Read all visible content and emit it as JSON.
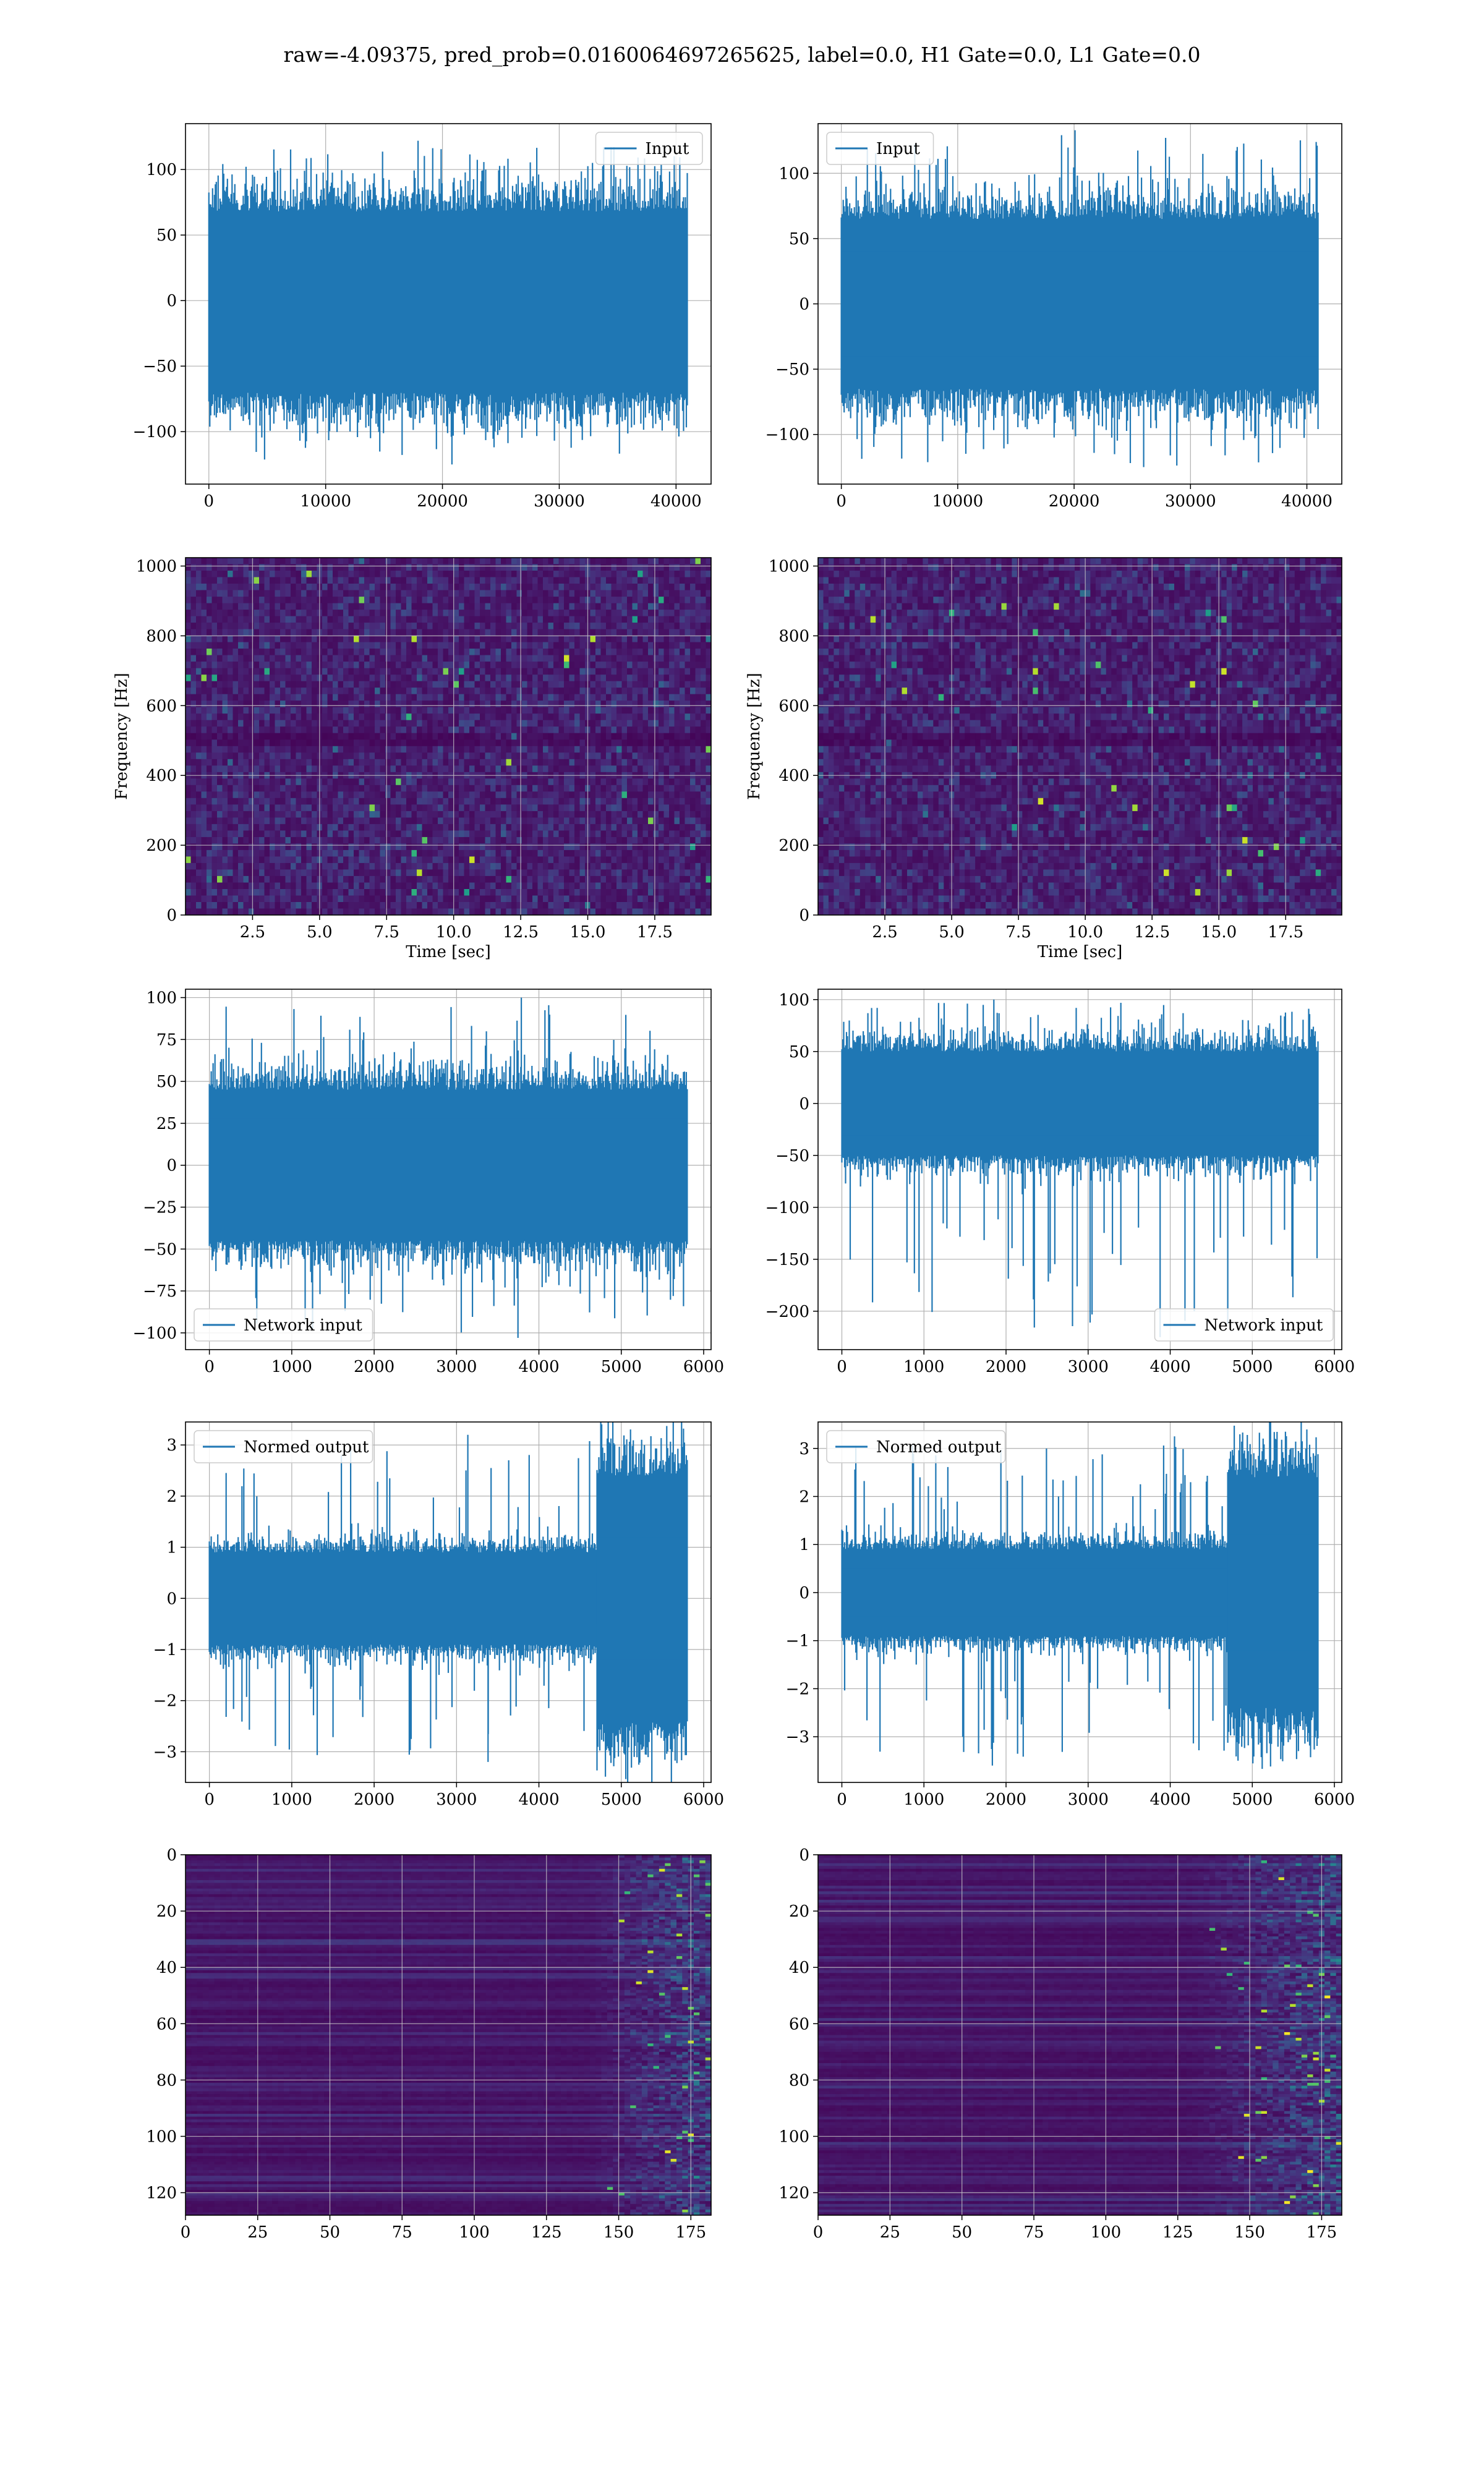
{
  "figure": {
    "title": "raw=-4.09375, pred_prob=0.0160064697265625, label=0.0, H1 Gate=0.0, L1 Gate=0.0"
  },
  "chart_data": [
    {
      "id": "input-h1",
      "type": "line",
      "row": 1,
      "col": 1,
      "legend": "Input",
      "legend_loc": "upper right",
      "x_range": [
        0,
        40960
      ],
      "xlim": [
        -2000,
        43000
      ],
      "ylim": [
        -140,
        135
      ],
      "xticks": [
        0,
        10000,
        20000,
        30000,
        40000
      ],
      "yticks": [
        -100,
        -50,
        0,
        50,
        100
      ],
      "signal": {
        "n_samples": 40960,
        "core_amplitude": [
          -70,
          68
        ],
        "peak_min": -125,
        "peak_max": 122
      },
      "grid": true,
      "color": "#1f77b4"
    },
    {
      "id": "input-l1",
      "type": "line",
      "row": 1,
      "col": 2,
      "legend": "Input",
      "legend_loc": "upper left",
      "x_range": [
        0,
        40960
      ],
      "xlim": [
        -2000,
        43000
      ],
      "ylim": [
        -138,
        138
      ],
      "xticks": [
        0,
        10000,
        20000,
        30000,
        40000
      ],
      "yticks": [
        -100,
        -50,
        0,
        50,
        100
      ],
      "signal": {
        "n_samples": 40960,
        "core_amplitude": [
          -65,
          65
        ],
        "peak_min": -125,
        "peak_max": 133
      },
      "grid": true,
      "color": "#1f77b4"
    },
    {
      "id": "spectrogram-h1",
      "type": "heatmap",
      "row": 2,
      "col": 1,
      "xlabel": "Time [sec]",
      "ylabel": "Frequency [Hz]",
      "xlim": [
        0,
        19.6
      ],
      "ylim": [
        0,
        1024
      ],
      "xticks": [
        2.5,
        5.0,
        7.5,
        10.0,
        12.5,
        15.0,
        17.5
      ],
      "yticks": [
        0,
        200,
        400,
        600,
        800,
        1000
      ],
      "xtick_labels": [
        "2.5",
        "5.0",
        "7.5",
        "10.0",
        "12.5",
        "15.0",
        "17.5"
      ],
      "colormap": "viridis",
      "dark_band_hz": [
        480,
        520
      ],
      "grid": true
    },
    {
      "id": "spectrogram-l1",
      "type": "heatmap",
      "row": 2,
      "col": 2,
      "xlabel": "Time [sec]",
      "ylabel": "Frequency [Hz]",
      "xlim": [
        0,
        19.6
      ],
      "ylim": [
        0,
        1024
      ],
      "xticks": [
        2.5,
        5.0,
        7.5,
        10.0,
        12.5,
        15.0,
        17.5
      ],
      "yticks": [
        0,
        200,
        400,
        600,
        800,
        1000
      ],
      "xtick_labels": [
        "2.5",
        "5.0",
        "7.5",
        "10.0",
        "12.5",
        "15.0",
        "17.5"
      ],
      "colormap": "viridis",
      "dark_band_hz": [
        480,
        520
      ],
      "grid": true
    },
    {
      "id": "network-input-h1",
      "type": "line",
      "row": 3,
      "col": 1,
      "legend": "Network input",
      "legend_loc": "lower left",
      "x_range": [
        0,
        5800
      ],
      "xlim": [
        -290,
        6090
      ],
      "ylim": [
        -110,
        105
      ],
      "xticks": [
        0,
        1000,
        2000,
        3000,
        4000,
        5000,
        6000
      ],
      "yticks": [
        -100,
        -75,
        -50,
        -25,
        0,
        25,
        50,
        75,
        100
      ],
      "signal": {
        "n_samples": 5800,
        "core_amplitude": [
          -45,
          45
        ],
        "peak_min": -103,
        "peak_max": 100
      },
      "grid": true,
      "color": "#1f77b4"
    },
    {
      "id": "network-input-l1",
      "type": "line",
      "row": 3,
      "col": 2,
      "legend": "Network input",
      "legend_loc": "lower right",
      "x_range": [
        0,
        5800
      ],
      "xlim": [
        -290,
        6090
      ],
      "ylim": [
        -237,
        110
      ],
      "xticks": [
        0,
        1000,
        2000,
        3000,
        4000,
        5000,
        6000
      ],
      "yticks": [
        -200,
        -150,
        -100,
        -50,
        0,
        50,
        100
      ],
      "signal": {
        "n_samples": 5800,
        "core_amplitude": [
          -50,
          50
        ],
        "peak_min": -225,
        "peak_max": 100
      },
      "grid": true,
      "color": "#1f77b4"
    },
    {
      "id": "normed-output-h1",
      "type": "line",
      "row": 4,
      "col": 1,
      "legend": "Normed output",
      "legend_loc": "upper left",
      "x_range": [
        0,
        5800
      ],
      "xlim": [
        -290,
        6090
      ],
      "ylim": [
        -3.6,
        3.45
      ],
      "xticks": [
        0,
        1000,
        2000,
        3000,
        4000,
        5000,
        6000
      ],
      "yticks": [
        -3,
        -2,
        -1,
        0,
        1,
        2,
        3
      ],
      "signal": {
        "n_samples": 5800,
        "core_amplitude": [
          -0.9,
          0.9
        ],
        "burst_start": 4700,
        "burst_amplitude": [
          -2.4,
          2.4
        ],
        "peak_min": -3.2,
        "peak_max": 3.2
      },
      "grid": true,
      "color": "#1f77b4"
    },
    {
      "id": "normed-output-l1",
      "type": "line",
      "row": 4,
      "col": 2,
      "legend": "Normed output",
      "legend_loc": "upper left",
      "x_range": [
        0,
        5800
      ],
      "xlim": [
        -290,
        6090
      ],
      "ylim": [
        -3.95,
        3.55
      ],
      "xticks": [
        0,
        1000,
        2000,
        3000,
        4000,
        5000,
        6000
      ],
      "yticks": [
        -3,
        -2,
        -1,
        0,
        1,
        2,
        3
      ],
      "signal": {
        "n_samples": 5800,
        "core_amplitude": [
          -0.9,
          0.9
        ],
        "burst_start": 4700,
        "burst_amplitude": [
          -2.4,
          2.4
        ],
        "peak_min": -3.6,
        "peak_max": 3.25
      },
      "grid": true,
      "color": "#1f77b4"
    },
    {
      "id": "feature-map-h1",
      "type": "heatmap",
      "row": 5,
      "col": 1,
      "xlim": [
        0,
        182
      ],
      "ylim": [
        128,
        0
      ],
      "xticks": [
        0,
        25,
        50,
        75,
        100,
        125,
        150,
        175
      ],
      "yticks": [
        0,
        20,
        40,
        60,
        80,
        100,
        120
      ],
      "colormap": "viridis",
      "active_from": 140,
      "grid": true
    },
    {
      "id": "feature-map-l1",
      "type": "heatmap",
      "row": 5,
      "col": 2,
      "xlim": [
        0,
        182
      ],
      "ylim": [
        128,
        0
      ],
      "xticks": [
        0,
        25,
        50,
        75,
        100,
        125,
        150,
        175
      ],
      "yticks": [
        0,
        20,
        40,
        60,
        80,
        100,
        120
      ],
      "colormap": "viridis",
      "active_from": 130,
      "grid": true
    }
  ]
}
